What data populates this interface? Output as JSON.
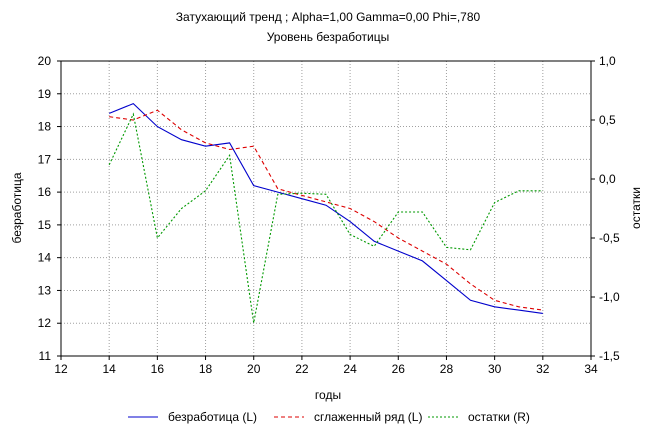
{
  "chart_data": {
    "type": "line",
    "title": "Затухающий тренд ; Alpha=1,00 Gamma=0,00 Phi=,780",
    "subtitle": "Уровень безработицы",
    "xlabel": "годы",
    "ylabel_left": "безработица",
    "ylabel_right": "остатки",
    "xlim": [
      12,
      34
    ],
    "ylim_left": [
      11,
      20
    ],
    "ylim_right": [
      -1.5,
      1.0
    ],
    "x_ticks": [
      "12",
      "14",
      "16",
      "18",
      "20",
      "22",
      "24",
      "26",
      "28",
      "30",
      "32",
      "34"
    ],
    "y_left_ticks": [
      "11",
      "12",
      "13",
      "14",
      "15",
      "16",
      "17",
      "18",
      "19",
      "20"
    ],
    "y_right_ticks": [
      "1,0",
      "0,5",
      "0,0",
      "-0,5",
      "-1,0",
      "-1,5"
    ],
    "grid": true,
    "legend_position": "bottom",
    "x": [
      14,
      15,
      16,
      17,
      18,
      19,
      20,
      21,
      22,
      23,
      24,
      25,
      26,
      27,
      28,
      29,
      30,
      31,
      32
    ],
    "series": [
      {
        "name": "безработица (L)",
        "axis": "left",
        "color": "#0000cc",
        "dash": "solid",
        "values": [
          18.4,
          18.7,
          18.0,
          17.6,
          17.4,
          17.5,
          16.2,
          16.0,
          15.8,
          15.6,
          15.1,
          14.5,
          14.2,
          13.9,
          13.3,
          12.7,
          12.5,
          12.4,
          12.3
        ]
      },
      {
        "name": "сглаженный ряд (L)",
        "axis": "left",
        "color": "#dd0000",
        "dash": "dashed",
        "values": [
          18.3,
          18.2,
          18.5,
          17.9,
          17.5,
          17.3,
          17.4,
          16.1,
          15.9,
          15.7,
          15.5,
          15.1,
          14.6,
          14.2,
          13.8,
          13.2,
          12.7,
          12.5,
          12.4
        ]
      },
      {
        "name": "остатки (R)",
        "axis": "right",
        "color": "#009900",
        "dash": "dotted",
        "values": [
          0.12,
          0.55,
          -0.5,
          -0.25,
          -0.1,
          0.2,
          -1.22,
          -0.13,
          -0.12,
          -0.13,
          -0.47,
          -0.57,
          -0.28,
          -0.28,
          -0.58,
          -0.6,
          -0.2,
          -0.1,
          -0.1
        ]
      }
    ]
  }
}
